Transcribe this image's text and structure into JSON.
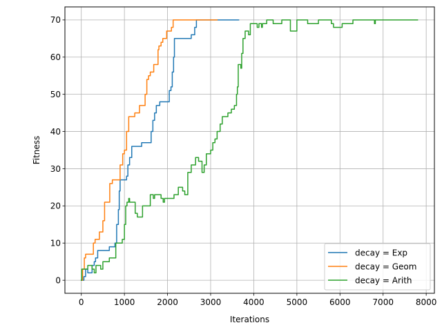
{
  "chart_data": {
    "type": "line",
    "title": "",
    "xlabel": "Iterations",
    "ylabel": "Fitness",
    "xlim": [
      -380,
      8190
    ],
    "ylim": [
      -3.5,
      73.5
    ],
    "xticks": [
      0,
      1000,
      2000,
      3000,
      4000,
      5000,
      6000,
      7000,
      8000
    ],
    "yticks": [
      0,
      10,
      20,
      30,
      40,
      50,
      60,
      70
    ],
    "grid": true,
    "legend_position": "lower-right",
    "series": [
      {
        "name": "decay = Exp",
        "color": "#1f77b4",
        "points": [
          [
            0,
            0
          ],
          [
            60,
            0
          ],
          [
            60,
            1
          ],
          [
            100,
            1
          ],
          [
            100,
            3
          ],
          [
            150,
            3
          ],
          [
            150,
            2
          ],
          [
            250,
            2
          ],
          [
            250,
            4
          ],
          [
            300,
            4
          ],
          [
            300,
            5
          ],
          [
            330,
            5
          ],
          [
            330,
            6
          ],
          [
            380,
            6
          ],
          [
            380,
            8
          ],
          [
            650,
            8
          ],
          [
            650,
            9
          ],
          [
            780,
            9
          ],
          [
            780,
            10
          ],
          [
            820,
            10
          ],
          [
            820,
            15
          ],
          [
            860,
            15
          ],
          [
            860,
            19
          ],
          [
            880,
            19
          ],
          [
            880,
            24
          ],
          [
            900,
            24
          ],
          [
            900,
            27
          ],
          [
            1050,
            27
          ],
          [
            1050,
            28
          ],
          [
            1080,
            28
          ],
          [
            1080,
            31
          ],
          [
            1120,
            31
          ],
          [
            1120,
            33
          ],
          [
            1170,
            33
          ],
          [
            1170,
            36
          ],
          [
            1400,
            36
          ],
          [
            1400,
            37
          ],
          [
            1620,
            37
          ],
          [
            1620,
            40
          ],
          [
            1660,
            40
          ],
          [
            1660,
            43
          ],
          [
            1700,
            43
          ],
          [
            1700,
            45
          ],
          [
            1740,
            45
          ],
          [
            1740,
            47
          ],
          [
            1820,
            47
          ],
          [
            1820,
            48
          ],
          [
            2040,
            48
          ],
          [
            2040,
            51
          ],
          [
            2080,
            51
          ],
          [
            2080,
            52
          ],
          [
            2110,
            52
          ],
          [
            2110,
            56
          ],
          [
            2140,
            56
          ],
          [
            2140,
            60
          ],
          [
            2160,
            60
          ],
          [
            2160,
            65
          ],
          [
            2550,
            65
          ],
          [
            2550,
            66
          ],
          [
            2630,
            66
          ],
          [
            2630,
            68
          ],
          [
            2670,
            68
          ],
          [
            2670,
            70
          ],
          [
            3650,
            70
          ]
        ]
      },
      {
        "name": "decay = Geom",
        "color": "#ff7f0e",
        "points": [
          [
            0,
            0
          ],
          [
            30,
            0
          ],
          [
            30,
            3
          ],
          [
            70,
            3
          ],
          [
            70,
            6
          ],
          [
            100,
            6
          ],
          [
            100,
            7
          ],
          [
            280,
            7
          ],
          [
            280,
            10
          ],
          [
            320,
            10
          ],
          [
            320,
            11
          ],
          [
            420,
            11
          ],
          [
            420,
            13
          ],
          [
            500,
            13
          ],
          [
            500,
            16
          ],
          [
            540,
            16
          ],
          [
            540,
            21
          ],
          [
            660,
            21
          ],
          [
            660,
            26
          ],
          [
            720,
            26
          ],
          [
            720,
            27
          ],
          [
            900,
            27
          ],
          [
            900,
            31
          ],
          [
            960,
            31
          ],
          [
            960,
            34
          ],
          [
            1000,
            34
          ],
          [
            1000,
            35
          ],
          [
            1050,
            35
          ],
          [
            1050,
            40
          ],
          [
            1100,
            40
          ],
          [
            1100,
            44
          ],
          [
            1240,
            44
          ],
          [
            1240,
            45
          ],
          [
            1350,
            45
          ],
          [
            1350,
            47
          ],
          [
            1480,
            47
          ],
          [
            1480,
            50
          ],
          [
            1520,
            50
          ],
          [
            1520,
            54
          ],
          [
            1560,
            54
          ],
          [
            1560,
            55
          ],
          [
            1600,
            55
          ],
          [
            1600,
            56
          ],
          [
            1680,
            56
          ],
          [
            1680,
            58
          ],
          [
            1780,
            58
          ],
          [
            1780,
            62
          ],
          [
            1800,
            62
          ],
          [
            1800,
            63
          ],
          [
            1850,
            63
          ],
          [
            1850,
            64
          ],
          [
            1890,
            64
          ],
          [
            1890,
            65
          ],
          [
            1980,
            65
          ],
          [
            1980,
            67
          ],
          [
            2090,
            67
          ],
          [
            2090,
            68
          ],
          [
            2130,
            68
          ],
          [
            2130,
            70
          ],
          [
            3150,
            70
          ]
        ]
      },
      {
        "name": "decay = Arith",
        "color": "#2ca02c",
        "points": [
          [
            0,
            0
          ],
          [
            10,
            0
          ],
          [
            10,
            3
          ],
          [
            150,
            3
          ],
          [
            150,
            4
          ],
          [
            250,
            4
          ],
          [
            250,
            3
          ],
          [
            300,
            3
          ],
          [
            300,
            2
          ],
          [
            340,
            2
          ],
          [
            340,
            4
          ],
          [
            450,
            4
          ],
          [
            450,
            3
          ],
          [
            500,
            3
          ],
          [
            500,
            5
          ],
          [
            650,
            5
          ],
          [
            650,
            6
          ],
          [
            800,
            6
          ],
          [
            800,
            10
          ],
          [
            950,
            10
          ],
          [
            950,
            11
          ],
          [
            1000,
            11
          ],
          [
            1000,
            15
          ],
          [
            1030,
            15
          ],
          [
            1030,
            20
          ],
          [
            1060,
            20
          ],
          [
            1060,
            21
          ],
          [
            1100,
            21
          ],
          [
            1100,
            22
          ],
          [
            1120,
            22
          ],
          [
            1120,
            21
          ],
          [
            1250,
            21
          ],
          [
            1250,
            18
          ],
          [
            1300,
            18
          ],
          [
            1300,
            17
          ],
          [
            1420,
            17
          ],
          [
            1420,
            20
          ],
          [
            1600,
            20
          ],
          [
            1600,
            23
          ],
          [
            1670,
            23
          ],
          [
            1670,
            22
          ],
          [
            1700,
            22
          ],
          [
            1700,
            23
          ],
          [
            1850,
            23
          ],
          [
            1850,
            22
          ],
          [
            1900,
            22
          ],
          [
            1900,
            21
          ],
          [
            1930,
            21
          ],
          [
            1930,
            22
          ],
          [
            2150,
            22
          ],
          [
            2150,
            23
          ],
          [
            2250,
            23
          ],
          [
            2250,
            25
          ],
          [
            2350,
            25
          ],
          [
            2350,
            24
          ],
          [
            2400,
            24
          ],
          [
            2400,
            23
          ],
          [
            2470,
            23
          ],
          [
            2470,
            29
          ],
          [
            2550,
            29
          ],
          [
            2550,
            31
          ],
          [
            2650,
            31
          ],
          [
            2650,
            33
          ],
          [
            2720,
            33
          ],
          [
            2720,
            32
          ],
          [
            2800,
            32
          ],
          [
            2800,
            29
          ],
          [
            2850,
            29
          ],
          [
            2850,
            31
          ],
          [
            2900,
            31
          ],
          [
            2900,
            34
          ],
          [
            3000,
            34
          ],
          [
            3000,
            35
          ],
          [
            3050,
            35
          ],
          [
            3050,
            37
          ],
          [
            3100,
            37
          ],
          [
            3100,
            38
          ],
          [
            3150,
            38
          ],
          [
            3150,
            40
          ],
          [
            3220,
            40
          ],
          [
            3220,
            42
          ],
          [
            3270,
            42
          ],
          [
            3270,
            44
          ],
          [
            3400,
            44
          ],
          [
            3400,
            45
          ],
          [
            3480,
            45
          ],
          [
            3480,
            46
          ],
          [
            3550,
            46
          ],
          [
            3550,
            47
          ],
          [
            3600,
            47
          ],
          [
            3600,
            50
          ],
          [
            3620,
            50
          ],
          [
            3620,
            52
          ],
          [
            3640,
            52
          ],
          [
            3640,
            58
          ],
          [
            3700,
            58
          ],
          [
            3700,
            57
          ],
          [
            3720,
            57
          ],
          [
            3720,
            61
          ],
          [
            3750,
            61
          ],
          [
            3750,
            65
          ],
          [
            3800,
            65
          ],
          [
            3800,
            67
          ],
          [
            3880,
            67
          ],
          [
            3880,
            66
          ],
          [
            3920,
            66
          ],
          [
            3920,
            69
          ],
          [
            4080,
            69
          ],
          [
            4080,
            68
          ],
          [
            4120,
            68
          ],
          [
            4120,
            69
          ],
          [
            4180,
            69
          ],
          [
            4180,
            68
          ],
          [
            4200,
            68
          ],
          [
            4200,
            69
          ],
          [
            4300,
            69
          ],
          [
            4300,
            70
          ],
          [
            4450,
            70
          ],
          [
            4450,
            69
          ],
          [
            4650,
            69
          ],
          [
            4650,
            70
          ],
          [
            4850,
            70
          ],
          [
            4850,
            67
          ],
          [
            5000,
            67
          ],
          [
            5000,
            70
          ],
          [
            5250,
            70
          ],
          [
            5250,
            69
          ],
          [
            5500,
            69
          ],
          [
            5500,
            70
          ],
          [
            5800,
            70
          ],
          [
            5800,
            69
          ],
          [
            5850,
            69
          ],
          [
            5850,
            68
          ],
          [
            6050,
            68
          ],
          [
            6050,
            69
          ],
          [
            6300,
            69
          ],
          [
            6300,
            70
          ],
          [
            6800,
            70
          ],
          [
            6800,
            69
          ],
          [
            6820,
            69
          ],
          [
            6820,
            70
          ],
          [
            7800,
            70
          ]
        ]
      }
    ]
  }
}
